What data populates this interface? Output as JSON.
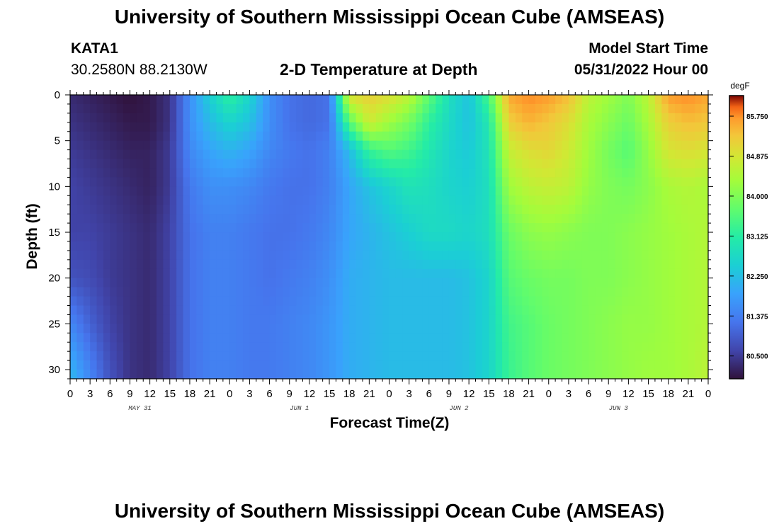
{
  "header": {
    "title": "University of Southern Mississippi Ocean Cube (AMSEAS)",
    "station": "KATA1",
    "coords": "30.2580N  88.2130W",
    "plot_title": "2-D Temperature at Depth",
    "model_start_label": "Model Start Time",
    "model_start_value": "05/31/2022 Hour 00"
  },
  "footer": {
    "title": "University of Southern Mississippi Ocean Cube (AMSEAS)"
  },
  "chart_data": {
    "type": "heatmap",
    "xlabel": "Forecast Time(Z)",
    "ylabel": "Depth (ft)",
    "x_tick_labels": [
      "0",
      "3",
      "6",
      "9",
      "12",
      "15",
      "18",
      "21",
      "0",
      "3",
      "6",
      "9",
      "12",
      "15",
      "18",
      "21",
      "0",
      "3",
      "6",
      "9",
      "12",
      "15",
      "18",
      "21",
      "0",
      "3",
      "6",
      "9",
      "12",
      "15",
      "18",
      "21",
      "0"
    ],
    "day_labels": [
      "MAY 31",
      "JUN 1",
      "JUN 2",
      "JUN 3"
    ],
    "x_range_hours": [
      0,
      96
    ],
    "y_ticks": [
      0,
      5,
      10,
      15,
      20,
      25,
      30
    ],
    "y_range": [
      0,
      31
    ],
    "y_reversed": true,
    "colorbar": {
      "unit": "degF",
      "ticks": [
        "85.750",
        "84.875",
        "84.000",
        "83.125",
        "82.250",
        "81.375",
        "80.500"
      ],
      "range": [
        80.0,
        86.2
      ]
    },
    "depth_levels_ft": [
      0,
      3,
      6,
      10,
      15,
      20,
      25,
      31
    ],
    "hours": [
      0,
      3,
      6,
      9,
      12,
      15,
      18,
      21,
      24,
      27,
      30,
      33,
      36,
      39,
      42,
      45,
      48,
      51,
      54,
      57,
      60,
      63,
      66,
      69,
      72,
      75,
      78,
      81,
      84,
      87,
      90,
      93,
      96
    ],
    "temperature_degF": [
      [
        80.3,
        80.2,
        80.1,
        80.0,
        80.1,
        80.4,
        81.6,
        82.5,
        83.2,
        82.6,
        81.6,
        81.2,
        81.1,
        81.2,
        85.0,
        85.2,
        85.0,
        84.6,
        83.7,
        82.8,
        82.3,
        83.5,
        85.6,
        85.8,
        85.7,
        85.4,
        84.6,
        84.3,
        84.0,
        84.6,
        85.7,
        85.8,
        85.6
      ],
      [
        80.4,
        80.3,
        80.2,
        80.1,
        80.1,
        80.4,
        81.6,
        82.2,
        82.6,
        82.3,
        81.6,
        81.2,
        81.1,
        81.2,
        83.6,
        84.8,
        84.3,
        83.9,
        83.2,
        82.7,
        82.3,
        83.0,
        85.2,
        85.5,
        85.3,
        85.0,
        84.4,
        84.1,
        83.8,
        84.4,
        85.2,
        85.4,
        85.3
      ],
      [
        80.5,
        80.4,
        80.3,
        80.2,
        80.2,
        80.5,
        81.5,
        81.9,
        82.1,
        81.9,
        81.5,
        81.3,
        81.2,
        81.4,
        82.2,
        83.3,
        83.6,
        83.4,
        83.0,
        82.6,
        82.4,
        82.9,
        84.7,
        85.0,
        85.1,
        84.8,
        84.3,
        83.9,
        83.6,
        84.2,
        84.9,
        85.0,
        84.9
      ],
      [
        80.6,
        80.5,
        80.4,
        80.3,
        80.2,
        80.5,
        81.3,
        81.6,
        81.6,
        81.5,
        81.3,
        81.2,
        81.2,
        81.4,
        81.9,
        82.3,
        82.6,
        82.9,
        82.8,
        82.6,
        82.5,
        82.8,
        84.3,
        84.6,
        84.7,
        84.6,
        84.2,
        84.0,
        83.9,
        84.1,
        84.4,
        84.5,
        84.4
      ],
      [
        80.6,
        80.6,
        80.5,
        80.4,
        80.3,
        80.6,
        81.2,
        81.4,
        81.4,
        81.3,
        81.2,
        81.2,
        81.3,
        81.5,
        81.9,
        82.1,
        82.3,
        82.5,
        82.7,
        82.7,
        82.6,
        82.8,
        83.8,
        84.1,
        84.2,
        84.1,
        84.0,
        84.0,
        84.1,
        84.2,
        84.3,
        84.4,
        84.5
      ],
      [
        80.8,
        80.7,
        80.5,
        80.4,
        80.3,
        80.6,
        81.2,
        81.4,
        81.4,
        81.3,
        81.2,
        81.3,
        81.4,
        81.6,
        82.0,
        82.1,
        82.2,
        82.2,
        82.2,
        82.2,
        82.3,
        82.6,
        83.6,
        83.8,
        83.9,
        83.9,
        84.0,
        84.0,
        84.1,
        84.2,
        84.3,
        84.4,
        84.5
      ],
      [
        81.5,
        81.0,
        80.6,
        80.4,
        80.3,
        80.6,
        81.2,
        81.4,
        81.4,
        81.3,
        81.3,
        81.4,
        81.5,
        81.7,
        82.0,
        82.1,
        82.2,
        82.2,
        82.2,
        82.2,
        82.3,
        82.6,
        83.4,
        83.6,
        83.8,
        83.9,
        84.0,
        84.1,
        84.2,
        84.2,
        84.3,
        84.4,
        84.5
      ],
      [
        82.2,
        81.5,
        80.8,
        80.4,
        80.3,
        80.6,
        81.2,
        81.4,
        81.4,
        81.3,
        81.3,
        81.4,
        81.5,
        81.7,
        82.0,
        82.1,
        82.2,
        82.2,
        82.2,
        82.2,
        82.3,
        82.6,
        83.3,
        83.6,
        83.8,
        83.9,
        84.0,
        84.1,
        84.2,
        84.3,
        84.3,
        84.4,
        84.6
      ]
    ]
  }
}
